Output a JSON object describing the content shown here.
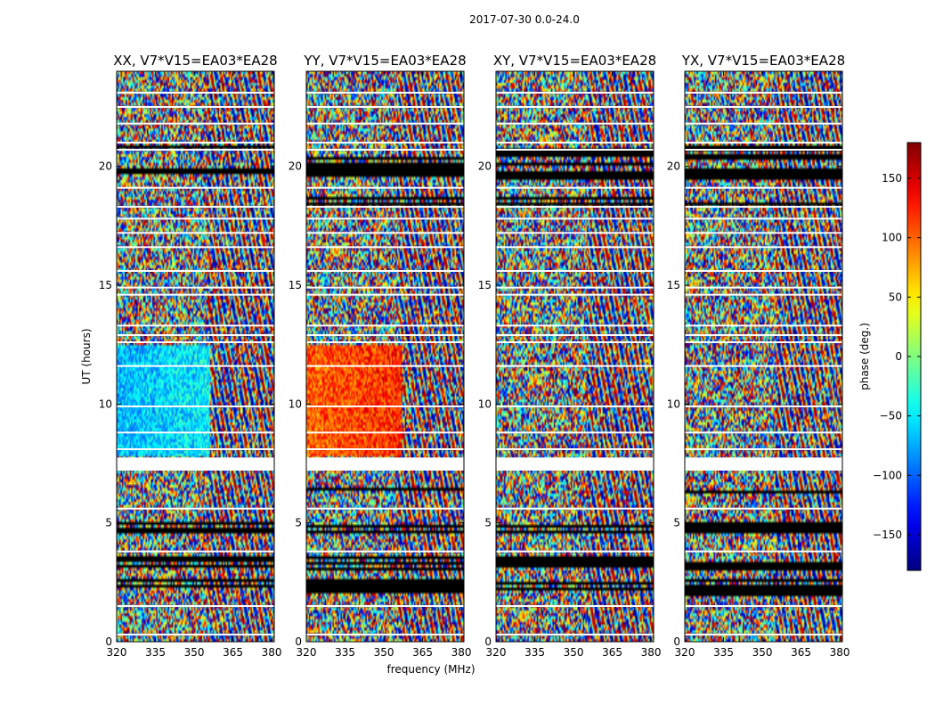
{
  "figure": {
    "suptitle": "2017-07-30 0.0-24.0"
  },
  "chart_data": [
    {
      "type": "heatmap",
      "title": "XX, V7*V15=EA03*EA28",
      "ylabel": "UT (hours)",
      "xlabel": "",
      "xlim": [
        320,
        381
      ],
      "ylim": [
        0,
        24
      ],
      "xticks": [
        "320",
        "335",
        "350",
        "365",
        "380"
      ],
      "yticks": [
        "0",
        "5",
        "10",
        "15",
        "20"
      ],
      "coherent_block": {
        "t": [
          7.8,
          12.5
        ],
        "f": [
          320,
          356
        ],
        "phase_deg": -70
      }
    },
    {
      "type": "heatmap",
      "title": "YY, V7*V15=EA03*EA28",
      "ylabel": "",
      "xlabel": "frequency (MHz)",
      "xlim": [
        320,
        381
      ],
      "ylim": [
        0,
        24
      ],
      "xticks": [
        "320",
        "335",
        "350",
        "365",
        "380"
      ],
      "yticks": [
        "0",
        "5",
        "10",
        "15",
        "20"
      ],
      "coherent_block": {
        "t": [
          7.8,
          12.5
        ],
        "f": [
          320,
          357
        ],
        "phase_deg": 100
      }
    },
    {
      "type": "heatmap",
      "title": "XY, V7*V15=EA03*EA28",
      "ylabel": "",
      "xlabel": "",
      "xlim": [
        320,
        381
      ],
      "ylim": [
        0,
        24
      ],
      "xticks": [
        "320",
        "335",
        "350",
        "365",
        "380"
      ],
      "yticks": [
        "0",
        "5",
        "10",
        "15",
        "20"
      ],
      "coherent_block": null
    },
    {
      "type": "heatmap",
      "title": "YX, V7*V15=EA03*EA28",
      "ylabel": "",
      "xlabel": "",
      "xlim": [
        320,
        381
      ],
      "ylim": [
        0,
        24
      ],
      "xticks": [
        "320",
        "335",
        "350",
        "365",
        "380"
      ],
      "yticks": [
        "0",
        "5",
        "10",
        "15",
        "20"
      ],
      "coherent_block": null
    }
  ],
  "colorbar": {
    "label": "phase (deg.)",
    "range": [
      -180,
      180
    ],
    "ticks": [
      "150",
      "100",
      "50",
      "0",
      "−50",
      "−100",
      "−150"
    ],
    "tick_values": [
      150,
      100,
      50,
      0,
      -50,
      -100,
      -150
    ],
    "colormap": "jet"
  },
  "flagged": {
    "gap_hours": [
      7.2,
      7.75
    ],
    "white_line_hours": [
      0.3,
      1.5,
      3.8,
      5.6,
      8.1,
      8.8,
      9.9,
      11.6,
      12.6,
      12.9,
      13.3,
      14.6,
      14.9,
      15.6,
      16.6,
      17.2,
      17.8,
      18.3,
      19.1,
      20.7,
      21.0,
      21.8,
      22.5,
      23.1
    ],
    "black_band_hours": [
      [
        1.9,
        2.7
      ],
      [
        3.0,
        3.6
      ],
      [
        4.6,
        5.0
      ],
      [
        6.2,
        6.5
      ],
      [
        18.4,
        18.8
      ],
      [
        19.4,
        20.9
      ]
    ]
  }
}
